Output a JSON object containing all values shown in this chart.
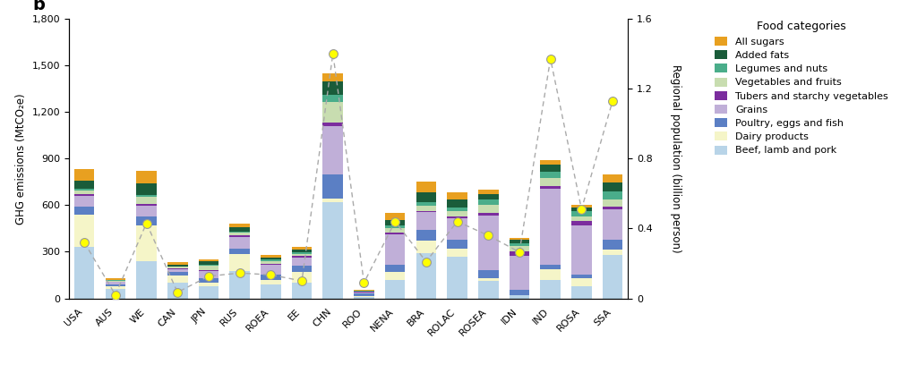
{
  "regions": [
    "USA",
    "AUS",
    "WE",
    "CAN",
    "JPN",
    "RUS",
    "ROEA",
    "EE",
    "CHN",
    "ROO",
    "NENA",
    "BRA",
    "ROLAC",
    "ROSEA",
    "IDN",
    "IND",
    "ROSA",
    "SSA"
  ],
  "food_categories": [
    "Beef, lamb and pork",
    "Dairy products",
    "Poultry, eggs and fish",
    "Grains",
    "Tubers and starchy vegetables",
    "Vegetables and fruits",
    "Legumes and nuts",
    "Added fats",
    "All sugars"
  ],
  "colors": [
    "#b8d4e8",
    "#f5f5c8",
    "#5b7fc4",
    "#c0afd8",
    "#7b2d9e",
    "#c8ddb0",
    "#4aad8a",
    "#1a5c3a",
    "#e8a020"
  ],
  "data": {
    "Beef, lamb and pork": [
      330,
      60,
      240,
      100,
      80,
      175,
      90,
      100,
      620,
      12,
      120,
      290,
      270,
      110,
      18,
      120,
      80,
      280
    ],
    "Dairy products": [
      210,
      20,
      230,
      50,
      20,
      110,
      30,
      70,
      20,
      5,
      50,
      80,
      50,
      20,
      3,
      70,
      50,
      35
    ],
    "Poultry, eggs and fish": [
      50,
      10,
      55,
      18,
      28,
      35,
      35,
      40,
      160,
      15,
      45,
      70,
      60,
      50,
      35,
      28,
      22,
      65
    ],
    "Grains": [
      70,
      15,
      70,
      22,
      48,
      75,
      60,
      55,
      310,
      7,
      195,
      115,
      135,
      355,
      220,
      490,
      320,
      195
    ],
    "Tubers and starchy vegetables": [
      10,
      3,
      12,
      3,
      8,
      12,
      7,
      8,
      22,
      3,
      12,
      8,
      12,
      16,
      28,
      15,
      25,
      18
    ],
    "Vegetables and fruits": [
      25,
      7,
      45,
      11,
      28,
      15,
      20,
      15,
      130,
      3,
      32,
      32,
      35,
      52,
      32,
      52,
      32,
      42
    ],
    "Legumes and nuts": [
      12,
      3,
      16,
      3,
      7,
      7,
      7,
      11,
      50,
      3,
      18,
      22,
      24,
      34,
      18,
      40,
      32,
      52
    ],
    "Added fats": [
      52,
      3,
      75,
      10,
      18,
      28,
      14,
      18,
      85,
      3,
      32,
      65,
      48,
      32,
      22,
      45,
      22,
      58
    ],
    "All sugars": [
      72,
      11,
      78,
      14,
      14,
      24,
      18,
      14,
      50,
      3,
      46,
      68,
      48,
      28,
      14,
      32,
      18,
      52
    ]
  },
  "population": [
    0.32,
    0.02,
    0.43,
    0.035,
    0.127,
    0.145,
    0.135,
    0.1,
    1.4,
    0.09,
    0.44,
    0.21,
    0.44,
    0.36,
    0.265,
    1.37,
    0.51,
    1.13
  ],
  "ylim_left": [
    0,
    1800
  ],
  "ylim_right": [
    0,
    1.6
  ],
  "yticks_left": [
    0,
    300,
    600,
    900,
    1200,
    1500,
    1800
  ],
  "ytick_labels_left": [
    "0",
    "300",
    "600",
    "900",
    "1,200",
    "1,500",
    "1,800"
  ],
  "yticks_right": [
    0,
    0.4,
    0.8,
    1.2,
    1.6
  ],
  "ytick_labels_right": [
    "0",
    "0.4",
    "0.8",
    "1.2",
    "1.6"
  ],
  "ylabel_left": "GHG emissions (MtCO₂e)",
  "ylabel_right": "Regional population (billion person)",
  "panel_label": "b",
  "legend_title": "Food categories"
}
